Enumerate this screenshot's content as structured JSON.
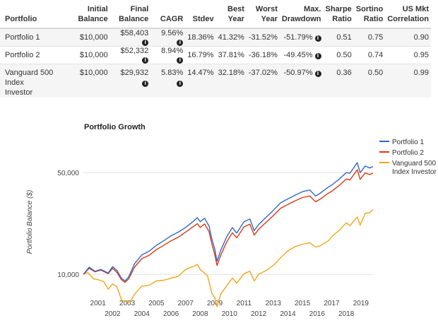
{
  "table": {
    "headers": [
      {
        "l1": "",
        "l2": "Portfolio"
      },
      {
        "l1": "Initial",
        "l2": "Balance"
      },
      {
        "l1": "Final",
        "l2": "Balance"
      },
      {
        "l1": "",
        "l2": "CAGR"
      },
      {
        "l1": "",
        "l2": "Stdev"
      },
      {
        "l1": "Best",
        "l2": "Year"
      },
      {
        "l1": "Worst",
        "l2": "Year"
      },
      {
        "l1": "Max.",
        "l2": "Drawdown"
      },
      {
        "l1": "Sharpe",
        "l2": "Ratio"
      },
      {
        "l1": "Sortino",
        "l2": "Ratio"
      },
      {
        "l1": "US Mkt",
        "l2": "Correlation"
      }
    ],
    "rows": [
      {
        "name": "Portfolio 1",
        "initial": "$10,000",
        "final": "$58,403",
        "cagr": "9.56%",
        "stdev": "18.36%",
        "best": "41.32%",
        "worst": "-31.52%",
        "drawdown": "-51.79%",
        "sharpe": "0.51",
        "sortino": "0.75",
        "corr": "0.90"
      },
      {
        "name": "Portfolio 2",
        "initial": "$10,000",
        "final": "$52,332",
        "cagr": "8.94%",
        "stdev": "16.79%",
        "best": "37.81%",
        "worst": "-36.18%",
        "drawdown": "-49.45%",
        "sharpe": "0.50",
        "sortino": "0.74",
        "corr": "0.95"
      },
      {
        "name": "Vanguard 500 Index Investor",
        "name_l1": "Vanguard 500 Index",
        "name_l2": "Investor",
        "initial": "$10,000",
        "final": "$29,932",
        "cagr": "5.83%",
        "stdev": "14.47%",
        "best": "32.18%",
        "worst": "-37.02%",
        "drawdown": "-50.97%",
        "sharpe": "0.36",
        "sortino": "0.50",
        "corr": "0.99"
      }
    ],
    "info_icon": "info-circle-icon"
  },
  "chart_data": {
    "type": "line",
    "title": "Portfolio Growth",
    "ylabel": "Portfolio Balance ($)",
    "xlabel": "",
    "yscale": "log",
    "ylim": [
      7000,
      75000
    ],
    "xlim": [
      2000.0,
      2019.83
    ],
    "yticks": [
      {
        "value": 10000,
        "label": "10,000"
      },
      {
        "value": 50000,
        "label": "50,000"
      }
    ],
    "xticks_odd": [
      "2001",
      "2003",
      "2005",
      "2007",
      "2009",
      "2011",
      "2013",
      "2015",
      "2017",
      "2019"
    ],
    "xticks_even": [
      "2002",
      "2004",
      "2006",
      "2008",
      "2010",
      "2012",
      "2014",
      "2016",
      "2018"
    ],
    "grid": true,
    "legend_position": "top-right",
    "series": [
      {
        "name": "Portfolio 1",
        "color": "#3366cc",
        "points": [
          [
            2000.0,
            10000
          ],
          [
            2000.4,
            11200
          ],
          [
            2000.8,
            10500
          ],
          [
            2001.2,
            10800
          ],
          [
            2001.7,
            10200
          ],
          [
            2002.0,
            11300
          ],
          [
            2002.3,
            10600
          ],
          [
            2002.6,
            9400
          ],
          [
            2002.85,
            9000
          ],
          [
            2003.1,
            9600
          ],
          [
            2003.5,
            11800
          ],
          [
            2004.0,
            13600
          ],
          [
            2004.5,
            14400
          ],
          [
            2005.0,
            15800
          ],
          [
            2005.5,
            17000
          ],
          [
            2006.0,
            18400
          ],
          [
            2006.5,
            19500
          ],
          [
            2007.0,
            21000
          ],
          [
            2007.5,
            23000
          ],
          [
            2007.8,
            24500
          ],
          [
            2008.0,
            23000
          ],
          [
            2008.3,
            24300
          ],
          [
            2008.6,
            21500
          ],
          [
            2008.8,
            17500
          ],
          [
            2009.0,
            14800
          ],
          [
            2009.15,
            12300
          ],
          [
            2009.4,
            14600
          ],
          [
            2009.8,
            18000
          ],
          [
            2010.2,
            21000
          ],
          [
            2010.5,
            19200
          ],
          [
            2011.0,
            23000
          ],
          [
            2011.4,
            24000
          ],
          [
            2011.7,
            20000
          ],
          [
            2012.0,
            22000
          ],
          [
            2012.5,
            24600
          ],
          [
            2013.0,
            27500
          ],
          [
            2013.5,
            31000
          ],
          [
            2014.0,
            33000
          ],
          [
            2014.5,
            35000
          ],
          [
            2015.0,
            37000
          ],
          [
            2015.5,
            38000
          ],
          [
            2015.9,
            34500
          ],
          [
            2016.2,
            36000
          ],
          [
            2016.8,
            40000
          ],
          [
            2017.0,
            41000
          ],
          [
            2017.5,
            45000
          ],
          [
            2018.0,
            50000
          ],
          [
            2018.25,
            49500
          ],
          [
            2018.75,
            58500
          ],
          [
            2018.95,
            50000
          ],
          [
            2019.3,
            55500
          ],
          [
            2019.6,
            53800
          ],
          [
            2019.83,
            55000
          ]
        ]
      },
      {
        "name": "Portfolio 2",
        "color": "#dc3912",
        "points": [
          [
            2000.0,
            10000
          ],
          [
            2000.4,
            11000
          ],
          [
            2000.8,
            10400
          ],
          [
            2001.2,
            10700
          ],
          [
            2001.7,
            10100
          ],
          [
            2002.0,
            11000
          ],
          [
            2002.3,
            10300
          ],
          [
            2002.6,
            9200
          ],
          [
            2002.85,
            8800
          ],
          [
            2003.1,
            9300
          ],
          [
            2003.5,
            11200
          ],
          [
            2004.0,
            12800
          ],
          [
            2004.5,
            13500
          ],
          [
            2005.0,
            14800
          ],
          [
            2005.5,
            15800
          ],
          [
            2006.0,
            17000
          ],
          [
            2006.5,
            18000
          ],
          [
            2007.0,
            19500
          ],
          [
            2007.5,
            21200
          ],
          [
            2007.8,
            22300
          ],
          [
            2008.0,
            21000
          ],
          [
            2008.3,
            22200
          ],
          [
            2008.6,
            19700
          ],
          [
            2008.8,
            16200
          ],
          [
            2009.0,
            13600
          ],
          [
            2009.15,
            11500
          ],
          [
            2009.4,
            13500
          ],
          [
            2009.8,
            16600
          ],
          [
            2010.2,
            19300
          ],
          [
            2010.5,
            17800
          ],
          [
            2011.0,
            21200
          ],
          [
            2011.4,
            22100
          ],
          [
            2011.7,
            18600
          ],
          [
            2012.0,
            20400
          ],
          [
            2012.5,
            22700
          ],
          [
            2013.0,
            25300
          ],
          [
            2013.5,
            28400
          ],
          [
            2014.0,
            30200
          ],
          [
            2014.5,
            32000
          ],
          [
            2015.0,
            33700
          ],
          [
            2015.5,
            34600
          ],
          [
            2015.9,
            31500
          ],
          [
            2016.2,
            32800
          ],
          [
            2016.8,
            36300
          ],
          [
            2017.0,
            37200
          ],
          [
            2017.5,
            40700
          ],
          [
            2018.0,
            45200
          ],
          [
            2018.25,
            44500
          ],
          [
            2018.75,
            52300
          ],
          [
            2018.95,
            45000
          ],
          [
            2019.3,
            49800
          ],
          [
            2019.6,
            48500
          ],
          [
            2019.83,
            49600
          ]
        ]
      },
      {
        "name": "Vanguard 500 Index Investor",
        "label_l1": "Vanguard 500",
        "label_l2": "Index Investor",
        "color": "#f2a51a",
        "points": [
          [
            2000.0,
            10000
          ],
          [
            2000.3,
            10300
          ],
          [
            2000.7,
            9300
          ],
          [
            2001.0,
            9200
          ],
          [
            2001.4,
            8900
          ],
          [
            2001.7,
            7900
          ],
          [
            2002.0,
            8600
          ],
          [
            2002.3,
            8200
          ],
          [
            2002.6,
            6700
          ],
          [
            2002.8,
            6500
          ],
          [
            2003.0,
            6600
          ],
          [
            2003.2,
            6400
          ],
          [
            2003.5,
            7300
          ],
          [
            2004.0,
            8300
          ],
          [
            2004.5,
            8400
          ],
          [
            2005.0,
            9000
          ],
          [
            2005.5,
            9100
          ],
          [
            2006.0,
            9400
          ],
          [
            2006.5,
            9700
          ],
          [
            2007.0,
            10800
          ],
          [
            2007.5,
            11300
          ],
          [
            2007.8,
            11700
          ],
          [
            2008.0,
            10800
          ],
          [
            2008.5,
            9800
          ],
          [
            2008.8,
            7400
          ],
          [
            2009.0,
            6900
          ],
          [
            2009.15,
            6000
          ],
          [
            2009.4,
            7300
          ],
          [
            2009.8,
            8300
          ],
          [
            2010.2,
            9400
          ],
          [
            2010.5,
            8700
          ],
          [
            2011.0,
            10100
          ],
          [
            2011.4,
            10500
          ],
          [
            2011.7,
            9000
          ],
          [
            2012.0,
            10000
          ],
          [
            2012.5,
            10600
          ],
          [
            2013.0,
            11500
          ],
          [
            2013.5,
            13000
          ],
          [
            2014.0,
            14500
          ],
          [
            2014.5,
            15500
          ],
          [
            2015.0,
            16100
          ],
          [
            2015.5,
            16500
          ],
          [
            2015.9,
            15400
          ],
          [
            2016.2,
            15700
          ],
          [
            2016.8,
            17100
          ],
          [
            2017.0,
            18100
          ],
          [
            2017.5,
            20000
          ],
          [
            2018.0,
            22600
          ],
          [
            2018.25,
            21600
          ],
          [
            2018.75,
            24800
          ],
          [
            2018.95,
            21800
          ],
          [
            2019.3,
            26300
          ],
          [
            2019.6,
            26500
          ],
          [
            2019.83,
            27800
          ]
        ]
      }
    ]
  }
}
